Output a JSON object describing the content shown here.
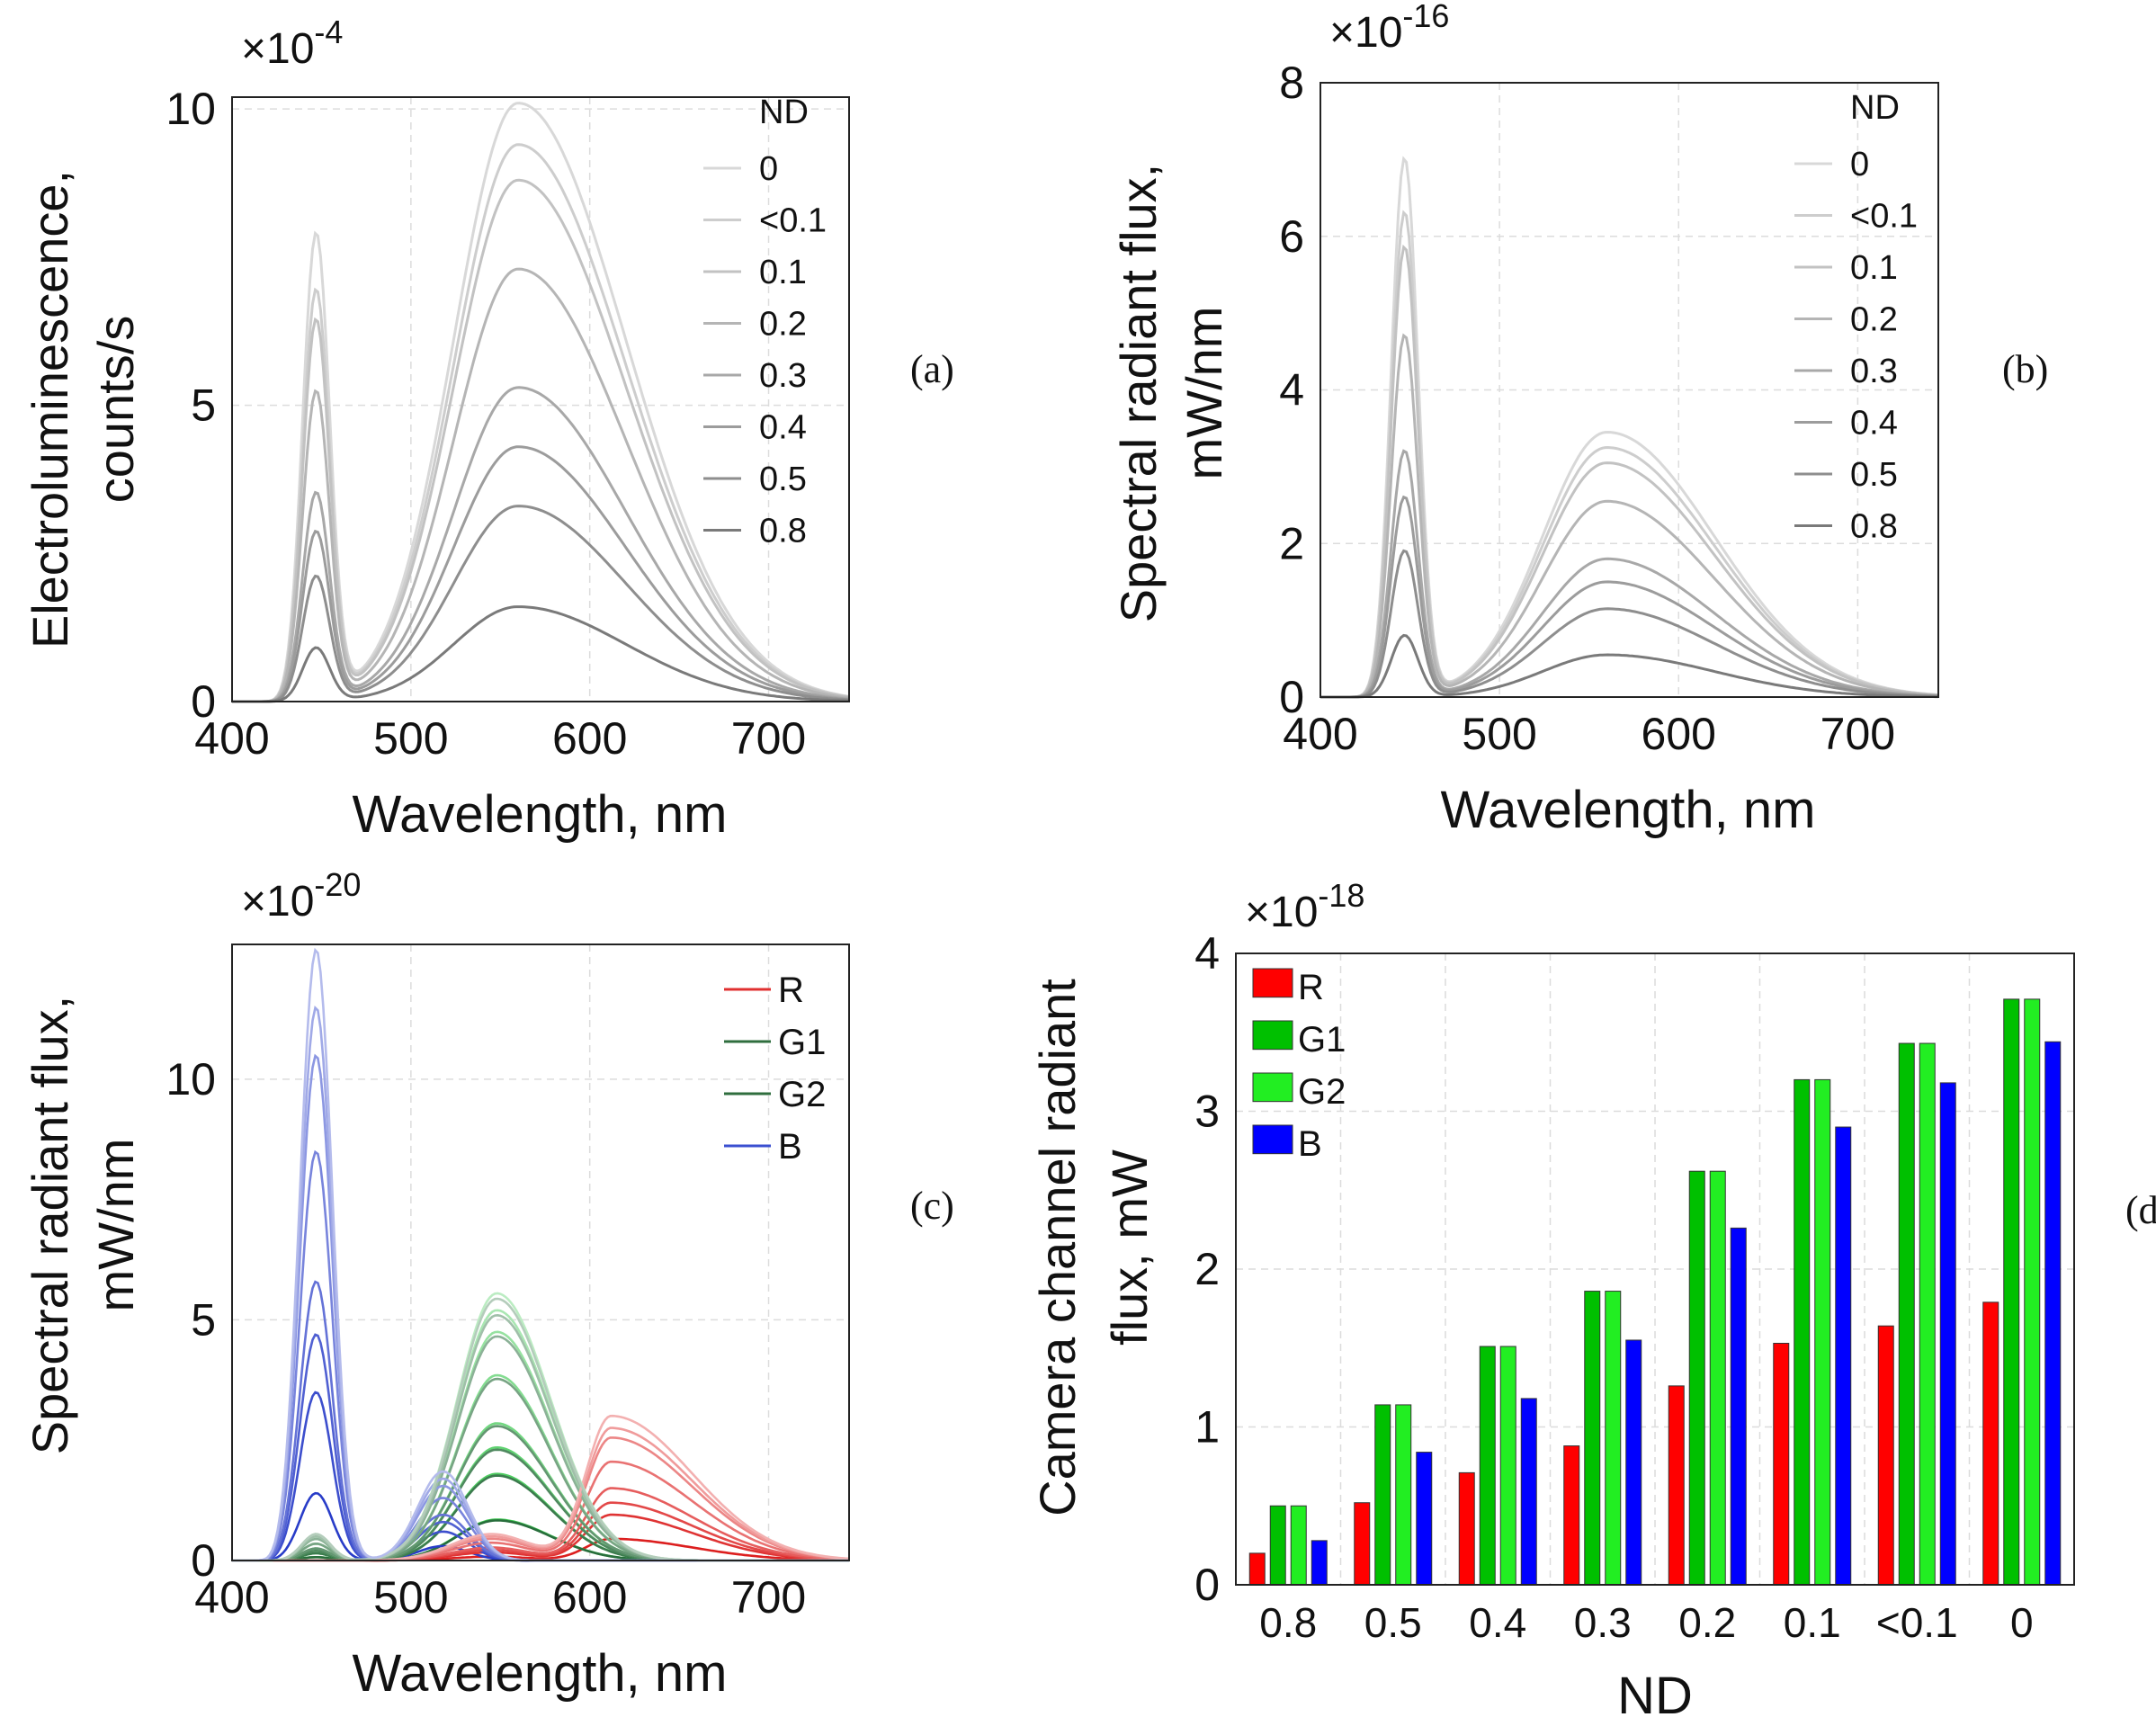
{
  "chart_data": [
    {
      "id": "a",
      "type": "line",
      "panel_label": "(a)",
      "xlabel": "Wavelength, nm",
      "ylabel": [
        "Electroluminescence,",
        "counts/s"
      ],
      "y_multiplier": "×10",
      "y_exponent": "-4",
      "xlim": [
        400,
        745
      ],
      "ylim": [
        0,
        10.2
      ],
      "xticks": [
        400,
        500,
        600,
        700
      ],
      "xtick_labels": [
        "400",
        "500",
        "600",
        "700"
      ],
      "yticks": [
        0,
        5,
        10
      ],
      "ytick_labels": [
        "0",
        "5",
        "10"
      ],
      "grid": true,
      "legend_title": "ND",
      "legend_position": "top-right",
      "series": [
        {
          "name": "0",
          "blue_peak": 7.85,
          "yellow_peak": 10.1,
          "color": "#d8d8d8"
        },
        {
          "name": "<0.1",
          "blue_peak": 6.9,
          "yellow_peak": 9.4,
          "color": "#cdcdcd"
        },
        {
          "name": "0.1",
          "blue_peak": 6.4,
          "yellow_peak": 8.8,
          "color": "#c2c2c2"
        },
        {
          "name": "0.2",
          "blue_peak": 5.2,
          "yellow_peak": 7.3,
          "color": "#b5b5b5"
        },
        {
          "name": "0.3",
          "blue_peak": 3.5,
          "yellow_peak": 5.3,
          "color": "#a8a8a8"
        },
        {
          "name": "0.4",
          "blue_peak": 2.85,
          "yellow_peak": 4.3,
          "color": "#9c9c9c"
        },
        {
          "name": "0.5",
          "blue_peak": 2.1,
          "yellow_peak": 3.3,
          "color": "#8e8e8e"
        },
        {
          "name": "0.8",
          "blue_peak": 0.9,
          "yellow_peak": 1.6,
          "color": "#7a7a7a"
        }
      ]
    },
    {
      "id": "b",
      "type": "line",
      "panel_label": "(b)",
      "xlabel": "Wavelength, nm",
      "ylabel": [
        "Spectral radiant flux,",
        "mW/nm"
      ],
      "y_multiplier": "×10",
      "y_exponent": "-16",
      "xlim": [
        400,
        745
      ],
      "ylim": [
        0,
        8
      ],
      "xticks": [
        400,
        500,
        600,
        700
      ],
      "xtick_labels": [
        "400",
        "500",
        "600",
        "700"
      ],
      "yticks": [
        0,
        2,
        4,
        6,
        8
      ],
      "ytick_labels": [
        "0",
        "2",
        "4",
        "6",
        "8"
      ],
      "grid": true,
      "legend_title": "ND",
      "legend_position": "top-right",
      "series": [
        {
          "name": "0",
          "blue_peak": 7.0,
          "yellow_peak": 3.45,
          "color": "#d8d8d8"
        },
        {
          "name": "<0.1",
          "blue_peak": 6.3,
          "yellow_peak": 3.25,
          "color": "#cdcdcd"
        },
        {
          "name": "0.1",
          "blue_peak": 5.85,
          "yellow_peak": 3.05,
          "color": "#c2c2c2"
        },
        {
          "name": "0.2",
          "blue_peak": 4.7,
          "yellow_peak": 2.55,
          "color": "#b5b5b5"
        },
        {
          "name": "0.3",
          "blue_peak": 3.2,
          "yellow_peak": 1.8,
          "color": "#a8a8a8"
        },
        {
          "name": "0.4",
          "blue_peak": 2.6,
          "yellow_peak": 1.5,
          "color": "#9c9c9c"
        },
        {
          "name": "0.5",
          "blue_peak": 1.9,
          "yellow_peak": 1.15,
          "color": "#8e8e8e"
        },
        {
          "name": "0.8",
          "blue_peak": 0.8,
          "yellow_peak": 0.55,
          "color": "#7a7a7a"
        }
      ]
    },
    {
      "id": "c",
      "type": "line",
      "panel_label": "(c)",
      "xlabel": "Wavelength, nm",
      "ylabel": [
        "Spectral radiant flux,",
        "mW/nm"
      ],
      "y_multiplier": "×10",
      "y_exponent": "-20",
      "xlim": [
        400,
        745
      ],
      "ylim": [
        0,
        12.8
      ],
      "xticks": [
        400,
        500,
        600,
        700
      ],
      "xtick_labels": [
        "400",
        "500",
        "600",
        "700"
      ],
      "yticks": [
        0,
        5,
        10
      ],
      "ytick_labels": [
        "0",
        "5",
        "10"
      ],
      "grid": true,
      "legend_position": "top-right",
      "legend": [
        {
          "name": "R",
          "color": "#e03030"
        },
        {
          "name": "G1",
          "color": "#2f6e3e"
        },
        {
          "name": "G2",
          "color": "#2f6e3e"
        },
        {
          "name": "B",
          "color": "#3a4fd0"
        }
      ],
      "nd_levels": [
        "0",
        "<0.1",
        "0.1",
        "0.2",
        "0.3",
        "0.4",
        "0.5",
        "0.8"
      ],
      "b_blue_peak": [
        12.7,
        11.5,
        10.5,
        8.5,
        5.8,
        4.7,
        3.5,
        1.4
      ],
      "b_green_peak": [
        1.85,
        1.7,
        1.55,
        1.3,
        0.95,
        0.8,
        0.6,
        0.3
      ],
      "g_peak": [
        5.55,
        5.2,
        4.75,
        3.85,
        2.85,
        2.35,
        1.8,
        0.85
      ],
      "g_blue_peak": [
        0.55,
        0.5,
        0.45,
        0.35,
        0.25,
        0.2,
        0.15,
        0.07
      ],
      "r_peak": [
        3.0,
        2.75,
        2.55,
        2.05,
        1.5,
        1.2,
        0.95,
        0.45
      ],
      "r_green_peak": [
        0.55,
        0.5,
        0.45,
        0.37,
        0.27,
        0.22,
        0.17,
        0.08
      ]
    },
    {
      "id": "d",
      "type": "bar",
      "panel_label": "(d)",
      "xlabel": "ND",
      "ylabel": [
        "Camera channel radiant",
        "flux, mW"
      ],
      "y_multiplier": "×10",
      "y_exponent": "-18",
      "ylim": [
        0,
        4
      ],
      "yticks": [
        0,
        1,
        2,
        3,
        4
      ],
      "ytick_labels": [
        "0",
        "1",
        "2",
        "3",
        "4"
      ],
      "grid": true,
      "legend_position": "top-left",
      "categories": [
        "0.8",
        "0.5",
        "0.4",
        "0.3",
        "0.2",
        "0.1",
        "<0.1",
        "0"
      ],
      "series": [
        {
          "name": "R",
          "color": "#ff0000",
          "values": [
            0.2,
            0.52,
            0.71,
            0.88,
            1.26,
            1.53,
            1.64,
            1.79
          ]
        },
        {
          "name": "G1",
          "color": "#00c000",
          "values": [
            0.5,
            1.14,
            1.51,
            1.86,
            2.62,
            3.2,
            3.43,
            3.71
          ]
        },
        {
          "name": "G2",
          "color": "#22ee22",
          "values": [
            0.5,
            1.14,
            1.51,
            1.86,
            2.62,
            3.2,
            3.43,
            3.71
          ]
        },
        {
          "name": "B",
          "color": "#0000ff",
          "values": [
            0.28,
            0.84,
            1.18,
            1.55,
            2.26,
            2.9,
            3.18,
            3.44
          ]
        }
      ]
    }
  ]
}
